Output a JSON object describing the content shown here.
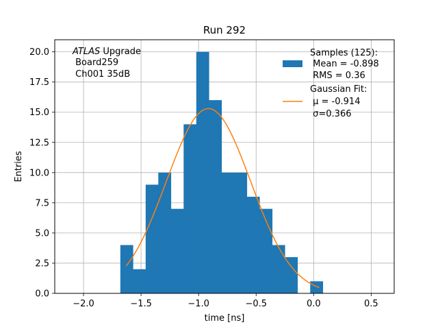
{
  "chart_data": {
    "type": "bar",
    "title": "Run 292",
    "xlabel": "time [ns]",
    "ylabel": "Entries",
    "xlim": [
      -2.25,
      0.7
    ],
    "ylim": [
      0,
      21
    ],
    "grid": true,
    "xticks": [
      -2.0,
      -1.5,
      -1.0,
      -0.5,
      0.0,
      0.5
    ],
    "xtick_labels": [
      "−2.0",
      "−1.5",
      "−1.0",
      "−0.5",
      "0.0",
      "0.5"
    ],
    "yticks": [
      0,
      2.5,
      5.0,
      7.5,
      10.0,
      12.5,
      15.0,
      17.5,
      20.0
    ],
    "ytick_labels": [
      "0.0",
      "2.5",
      "5.0",
      "7.5",
      "10.0",
      "12.5",
      "15.0",
      "17.5",
      "20.0"
    ],
    "annotation": {
      "italic": "ATLAS",
      "rest": " Upgrade",
      "line2": " Board259",
      "line3": " Ch001 35dB"
    },
    "bins": {
      "edges": [
        -1.68,
        -1.57,
        -1.46,
        -1.35,
        -1.24,
        -1.13,
        -1.02,
        -0.91,
        -0.8,
        -0.69,
        -0.58,
        -0.47,
        -0.36,
        -0.25,
        -0.14,
        -0.03,
        0.08,
        0.19,
        0.3,
        0.41,
        0.52
      ],
      "values": [
        4,
        2,
        9,
        10,
        7,
        14,
        20,
        16,
        10,
        10,
        8,
        7,
        4,
        3,
        0,
        1,
        0,
        0,
        0,
        0
      ],
      "color": "#1f77b4"
    },
    "fit": {
      "amplitude": 15.3,
      "mu": -0.914,
      "sigma": 0.366,
      "x_range": [
        -1.63,
        0.05
      ],
      "color": "#ff7f0e"
    },
    "legend": {
      "position": "top-right",
      "hist_lines": [
        "Samples (125):",
        " Mean = -0.898",
        " RMS = 0.36"
      ],
      "fit_lines": [
        "Gaussian Fit:",
        " μ = -0.914",
        " σ=0.366"
      ]
    }
  }
}
